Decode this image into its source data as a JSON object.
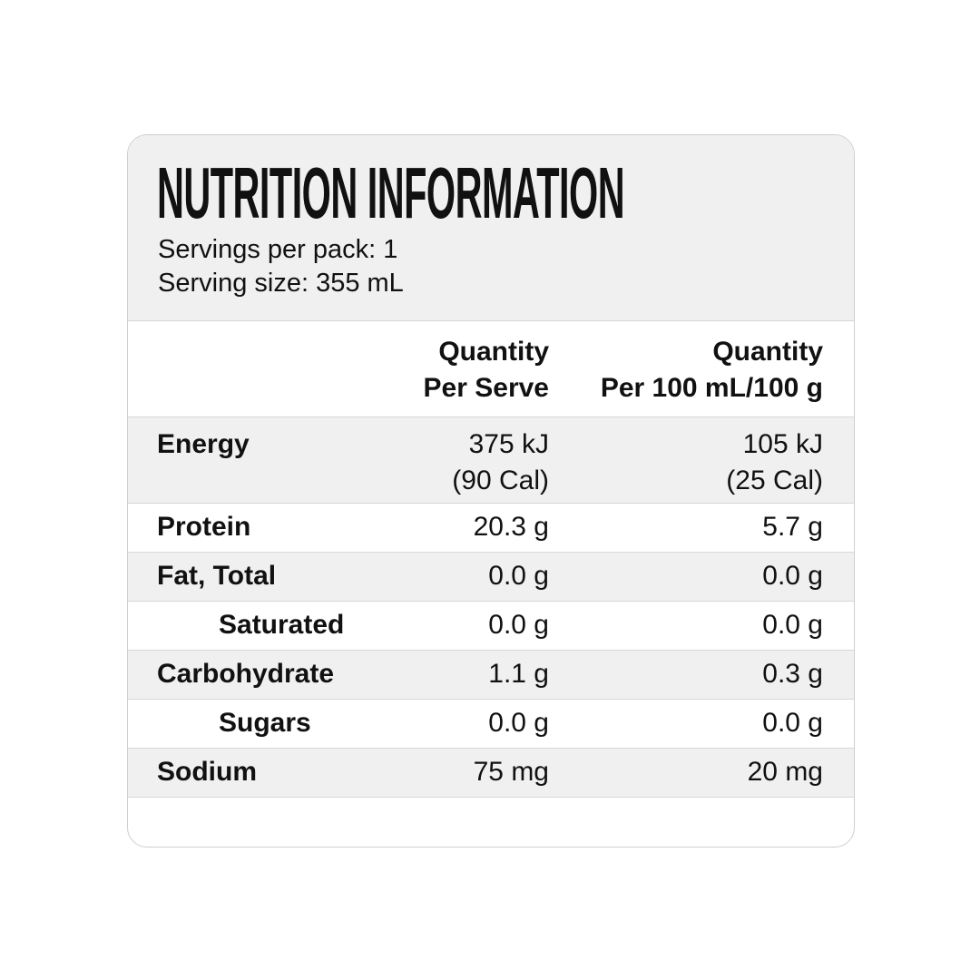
{
  "header": {
    "title": "NUTRITION INFORMATION",
    "servings_per_pack": "Servings per pack: 1",
    "serving_size": "Serving size: 355 mL"
  },
  "table": {
    "columns": [
      [
        "Quantity",
        "Per Serve"
      ],
      [
        "Quantity",
        "Per 100 mL/100 g"
      ]
    ],
    "rows": [
      {
        "label": "Energy",
        "per_serve": [
          "375 kJ",
          "(90 Cal)"
        ],
        "per_100": [
          "105 kJ",
          "(25 Cal)"
        ]
      },
      {
        "label": "Protein",
        "per_serve": [
          "20.3 g"
        ],
        "per_100": [
          "5.7 g"
        ]
      },
      {
        "label": "Fat, Total",
        "per_serve": [
          "0.0 g"
        ],
        "per_100": [
          "0.0 g"
        ]
      },
      {
        "label": "Saturated",
        "per_serve": [
          "0.0 g"
        ],
        "per_100": [
          "0.0 g"
        ],
        "indent": true
      },
      {
        "label": "Carbohydrate",
        "per_serve": [
          "1.1 g"
        ],
        "per_100": [
          "0.3 g"
        ]
      },
      {
        "label": "Sugars",
        "per_serve": [
          "0.0 g"
        ],
        "per_100": [
          "0.0 g"
        ],
        "indent": true
      },
      {
        "label": "Sodium",
        "per_serve": [
          "75 mg"
        ],
        "per_100": [
          "20 mg"
        ]
      }
    ]
  }
}
